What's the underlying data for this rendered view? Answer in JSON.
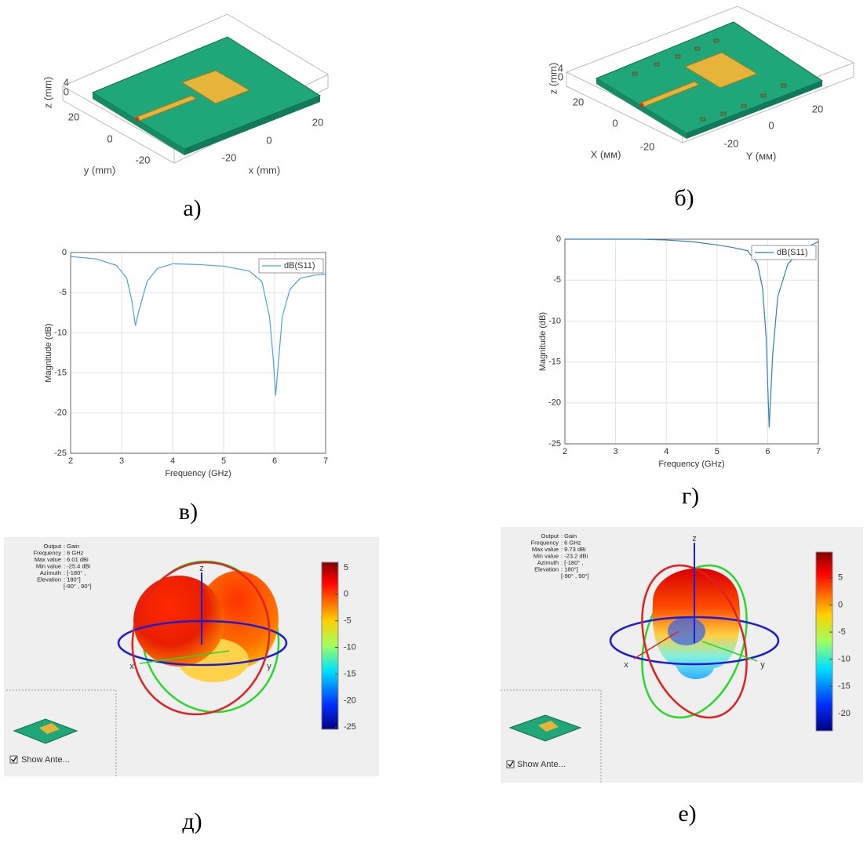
{
  "captions": [
    "а)",
    "б)",
    "в)",
    "г)",
    "д)",
    "е)"
  ],
  "panel_a": {
    "z_label": "z (mm)",
    "y_label": "y (mm)",
    "x_label": "x (mm)",
    "z_ticks": [
      4,
      0
    ],
    "y_ticks": [
      20,
      0,
      -20
    ],
    "x_ticks": [
      20,
      0,
      -20
    ]
  },
  "panel_b": {
    "z_label": "z (mm)",
    "x_label": "X (мм)",
    "y_label": "Y (мм)",
    "z_ticks": [
      4,
      0
    ],
    "x_ticks": [
      20,
      0,
      -20
    ],
    "y_ticks": [
      20,
      0,
      -20
    ]
  },
  "chart_data": [
    {
      "type": "line",
      "x_label": "Frequency (GHz)",
      "y_label": "Magnitude (dB)",
      "x": [
        2,
        2.5,
        2.9,
        3.1,
        3.2,
        3.27,
        3.35,
        3.5,
        3.7,
        4,
        4.5,
        5,
        5.5,
        5.75,
        5.9,
        5.97,
        6.02,
        6.07,
        6.15,
        6.3,
        6.5,
        6.8,
        7
      ],
      "series": [
        {
          "name": "dB(S11)",
          "color": "#4aa3df",
          "values": [
            -0.5,
            -0.8,
            -1.6,
            -3.2,
            -6,
            -9.1,
            -7,
            -3.6,
            -2,
            -1.4,
            -1.5,
            -1.7,
            -2.3,
            -3.6,
            -8,
            -13,
            -17.8,
            -14,
            -8,
            -4.6,
            -3.2,
            -2.8,
            -2.7
          ]
        }
      ],
      "xlim": [
        2,
        7
      ],
      "ylim": [
        -25,
        0
      ],
      "xticks": [
        2,
        3,
        4,
        5,
        6,
        7
      ],
      "yticks": [
        -25,
        -20,
        -15,
        -10,
        -5,
        0
      ],
      "grid": true,
      "legend": "upper right"
    },
    {
      "type": "line",
      "x_label": "Frequency (GHz)",
      "y_label": "Magnitude (dB)",
      "x": [
        2,
        3,
        3.5,
        4,
        4.5,
        5,
        5.3,
        5.6,
        5.8,
        5.9,
        5.97,
        6.03,
        6.1,
        6.2,
        6.4,
        6.7,
        7
      ],
      "series": [
        {
          "name": "dB(S11)",
          "color": "#2f7fc1",
          "values": [
            0,
            0,
            0,
            -0.1,
            -0.3,
            -0.7,
            -1,
            -1.4,
            -3,
            -6,
            -12,
            -23,
            -14,
            -7,
            -3,
            -1.2,
            -0.3
          ]
        }
      ],
      "xlim": [
        2,
        7
      ],
      "ylim": [
        -25,
        0
      ],
      "xticks": [
        2,
        3,
        4,
        5,
        6,
        7
      ],
      "yticks": [
        -25,
        -20,
        -15,
        -10,
        -5,
        0
      ],
      "grid": true,
      "legend": "upper right"
    }
  ],
  "pattern_d": {
    "info": [
      [
        "Output",
        ": Gain"
      ],
      [
        "Frequency",
        ": 6 GHz"
      ],
      [
        "Max value",
        ": 6.01 dBi"
      ],
      [
        "Min value",
        ": -25.4 dBi"
      ],
      [
        "Azimuth",
        ": [-180° ,"
      ],
      [
        "Elevation",
        ": 180°]"
      ],
      [
        "",
        "[-90° , 90°]"
      ]
    ],
    "axes": [
      "z",
      "x",
      "y"
    ],
    "colorbar": {
      "lim": [
        -25.4,
        6.01
      ],
      "ticks": [
        5,
        0,
        -5,
        -10,
        -15,
        -20,
        -25
      ]
    },
    "checkbox": "Show Ante..."
  },
  "pattern_e": {
    "info": [
      [
        "Output",
        ": Gain"
      ],
      [
        "Frequency",
        ": 6 GHz"
      ],
      [
        "Max value",
        ": 9.73 dBi"
      ],
      [
        "Min value",
        ": -23.2 dBi"
      ],
      [
        "Azimuth",
        ": [-180° ,"
      ],
      [
        "Elevation",
        ": 180°]"
      ],
      [
        "",
        "[-90° , 90°]"
      ]
    ],
    "axes": [
      "z",
      "x",
      "y"
    ],
    "colorbar": {
      "lim": [
        -23.2,
        9.73
      ],
      "ticks": [
        5,
        0,
        -5,
        -10,
        -15,
        -20
      ]
    },
    "checkbox": "Show Ante..."
  }
}
